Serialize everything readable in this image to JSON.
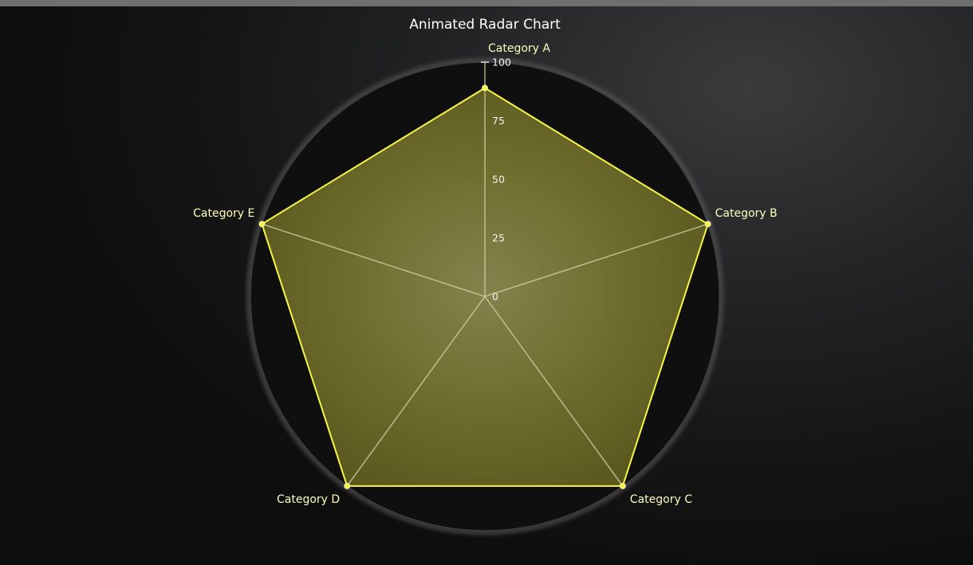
{
  "chart_data": {
    "type": "radar",
    "title": "Animated Radar Chart",
    "categories": [
      "Category A",
      "Category B",
      "Category C",
      "Category D",
      "Category E"
    ],
    "series": [
      {
        "values": [
          89,
          100,
          100,
          100,
          100
        ]
      }
    ],
    "radial_axis": {
      "range": [
        0,
        100
      ],
      "ticks": [
        0,
        25,
        50,
        75,
        100
      ],
      "tick_labels": [
        "0",
        "25",
        "50",
        "75",
        "100"
      ]
    },
    "grid": true,
    "legend": false,
    "colors": {
      "series_stroke": "#f7f54a",
      "series_fill": "#b3b03a",
      "grid_line": "#9e9e80",
      "plot_background": "#0f0f0f",
      "label_text": "#fdfcbf",
      "title_text": "#ffffff"
    }
  }
}
